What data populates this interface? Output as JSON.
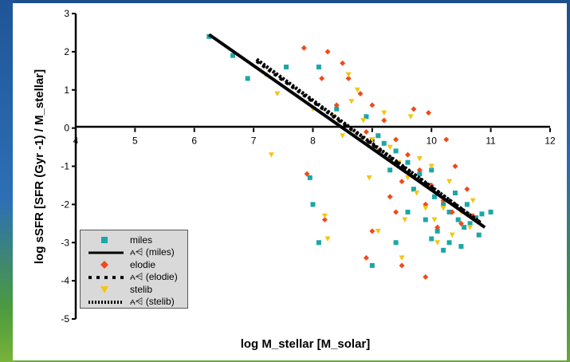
{
  "chart_data": {
    "type": "scatter",
    "xlabel": "log M_stellar [M_solar]",
    "ylabel": "log sSFR [SFR (Gyr -1) / M_stellar]",
    "xlim": [
      4,
      12
    ],
    "ylim": [
      -5,
      3
    ],
    "xticks": [
      "4",
      "5",
      "6",
      "7",
      "8",
      "9",
      "10",
      "11",
      "12"
    ],
    "yticks": [
      "3",
      "2",
      "1",
      "0",
      "-1",
      "-2",
      "-3",
      "-4",
      "-5"
    ],
    "x_axis_crosses_at_y": 0,
    "grid": false,
    "legend_placement": "bottom-left",
    "colors": {
      "miles": "#1aa7a8",
      "elodie": "#f04a1a",
      "stelib": "#f6c50d",
      "fit": "#000000"
    },
    "series": [
      {
        "name": "miles",
        "marker": "square",
        "points": [
          [
            6.25,
            2.4
          ],
          [
            6.65,
            1.9
          ],
          [
            6.9,
            1.3
          ],
          [
            7.55,
            1.6
          ],
          [
            8.1,
            1.6
          ],
          [
            8.4,
            0.5
          ],
          [
            8.9,
            0.3
          ],
          [
            9.1,
            -0.2
          ],
          [
            9.4,
            -0.6
          ],
          [
            9.6,
            -0.9
          ],
          [
            9.8,
            -1.2
          ],
          [
            9.95,
            -1.5
          ],
          [
            10.05,
            -1.8
          ],
          [
            10.2,
            -2.0
          ],
          [
            10.3,
            -2.2
          ],
          [
            10.45,
            -2.4
          ],
          [
            10.55,
            -2.6
          ],
          [
            10.65,
            -2.5
          ],
          [
            10.75,
            -2.35
          ],
          [
            10.85,
            -2.25
          ],
          [
            10.1,
            -2.7
          ],
          [
            10.3,
            -3.0
          ],
          [
            9.6,
            -2.2
          ],
          [
            9.9,
            -2.4
          ],
          [
            10.0,
            -1.1
          ],
          [
            9.7,
            -1.6
          ],
          [
            10.4,
            -1.7
          ],
          [
            10.6,
            -2.0
          ],
          [
            9.4,
            -3.0
          ],
          [
            9.0,
            -3.6
          ],
          [
            8.0,
            -2.0
          ],
          [
            7.95,
            -1.3
          ],
          [
            8.1,
            -3.0
          ],
          [
            10.2,
            -3.2
          ],
          [
            10.5,
            -3.1
          ],
          [
            9.3,
            -1.1
          ],
          [
            9.2,
            -0.4
          ],
          [
            10.8,
            -2.8
          ],
          [
            11.0,
            -2.2
          ],
          [
            10.0,
            -2.9
          ]
        ]
      },
      {
        "name": "⩜⩤ (miles)",
        "type": "line",
        "style": "solid",
        "x": [
          6.25,
          10.9
        ],
        "y": [
          2.45,
          -2.6
        ]
      },
      {
        "name": "elodie",
        "marker": "diamond",
        "points": [
          [
            7.85,
            2.1
          ],
          [
            8.25,
            2.0
          ],
          [
            8.5,
            1.7
          ],
          [
            8.6,
            1.3
          ],
          [
            8.8,
            0.9
          ],
          [
            9.0,
            0.6
          ],
          [
            9.2,
            0.2
          ],
          [
            9.4,
            -0.3
          ],
          [
            9.6,
            -0.7
          ],
          [
            9.8,
            -1.1
          ],
          [
            10.0,
            -1.5
          ],
          [
            10.2,
            -1.9
          ],
          [
            10.35,
            -2.2
          ],
          [
            10.5,
            -2.5
          ],
          [
            10.7,
            -2.3
          ],
          [
            9.9,
            -2.0
          ],
          [
            9.5,
            -1.4
          ],
          [
            9.1,
            -0.6
          ],
          [
            8.9,
            -0.1
          ],
          [
            8.4,
            0.6
          ],
          [
            8.15,
            1.3
          ],
          [
            7.9,
            -1.2
          ],
          [
            8.2,
            -2.4
          ],
          [
            8.9,
            -3.4
          ],
          [
            9.5,
            -3.6
          ],
          [
            9.9,
            -3.9
          ],
          [
            9.95,
            0.4
          ],
          [
            10.25,
            -0.3
          ],
          [
            10.4,
            -1.0
          ],
          [
            9.7,
            0.5
          ],
          [
            9.0,
            -2.7
          ],
          [
            9.4,
            -2.2
          ],
          [
            10.6,
            -1.6
          ],
          [
            9.3,
            -1.8
          ],
          [
            10.1,
            -2.6
          ]
        ]
      },
      {
        "name": "⩜⩤ (elodie)",
        "type": "line",
        "style": "dotted",
        "x": [
          7.05,
          10.85
        ],
        "y": [
          1.75,
          -2.5
        ]
      },
      {
        "name": "stelib",
        "marker": "triangle-down",
        "points": [
          [
            7.2,
            1.4
          ],
          [
            7.3,
            -0.7
          ],
          [
            7.4,
            0.9
          ],
          [
            8.0,
            0.5
          ],
          [
            8.2,
            -2.3
          ],
          [
            8.25,
            -2.9
          ],
          [
            8.35,
            0.3
          ],
          [
            8.5,
            -0.2
          ],
          [
            8.65,
            0.7
          ],
          [
            8.85,
            0.2
          ],
          [
            9.0,
            -0.3
          ],
          [
            9.2,
            0.4
          ],
          [
            9.3,
            -0.5
          ],
          [
            9.45,
            -0.9
          ],
          [
            9.6,
            -1.3
          ],
          [
            9.75,
            -1.7
          ],
          [
            9.9,
            -2.1
          ],
          [
            10.05,
            -2.4
          ],
          [
            10.2,
            -2.1
          ],
          [
            10.35,
            -2.8
          ],
          [
            10.5,
            -2.2
          ],
          [
            10.65,
            -2.6
          ],
          [
            9.8,
            -0.8
          ],
          [
            10.0,
            -1.0
          ],
          [
            9.5,
            -3.4
          ],
          [
            9.1,
            -2.7
          ],
          [
            8.6,
            1.4
          ],
          [
            8.75,
            1.0
          ],
          [
            10.3,
            -1.4
          ],
          [
            9.65,
            0.3
          ],
          [
            9.55,
            -2.4
          ],
          [
            10.1,
            -3.0
          ],
          [
            8.95,
            -1.3
          ],
          [
            10.7,
            -1.9
          ]
        ]
      },
      {
        "name": "⩜⩤ (stelib)",
        "type": "line",
        "style": "dense-dotted",
        "x": [
          7.05,
          10.8
        ],
        "y": [
          1.8,
          -2.45
        ]
      }
    ]
  },
  "legend": {
    "items": [
      {
        "label": "miles",
        "kind": "square",
        "color": "#1aa7a8"
      },
      {
        "label": "⩜⩤ (miles)",
        "kind": "solid",
        "color": "#000000"
      },
      {
        "label": "elodie",
        "kind": "diamond",
        "color": "#f04a1a"
      },
      {
        "label": "⩜⩤ (elodie)",
        "kind": "dotted",
        "color": "#000000"
      },
      {
        "label": "stelib",
        "kind": "triangle-down",
        "color": "#f6c50d"
      },
      {
        "label": "⩜⩤ (stelib)",
        "kind": "dense-dotted",
        "color": "#000000"
      }
    ]
  }
}
